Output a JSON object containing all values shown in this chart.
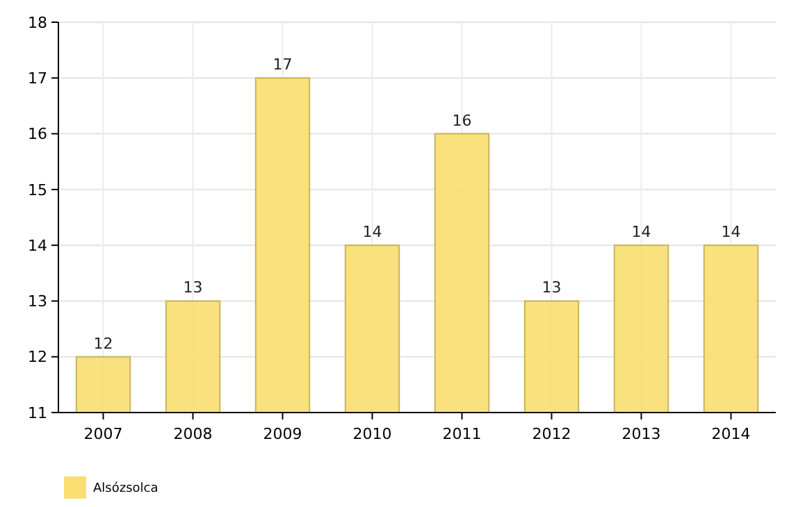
{
  "chart_data": {
    "type": "bar",
    "categories": [
      "2007",
      "2008",
      "2009",
      "2010",
      "2011",
      "2012",
      "2013",
      "2014"
    ],
    "series": [
      {
        "name": "Alsózsolca",
        "color": "#f8df70",
        "values": [
          12,
          13,
          17,
          14,
          16,
          13,
          14,
          14
        ]
      }
    ],
    "ylim": [
      11,
      18
    ],
    "yticks": [
      11,
      12,
      13,
      14,
      15,
      16,
      17,
      18
    ],
    "grid": true,
    "data_labels": true,
    "legend": "bottom left"
  }
}
